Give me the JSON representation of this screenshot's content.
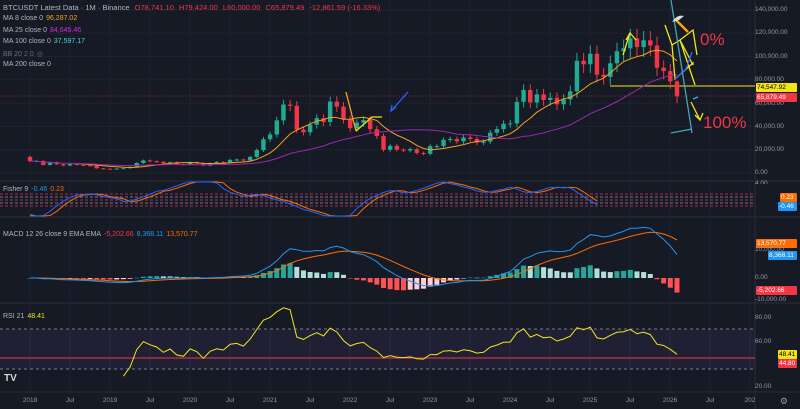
{
  "header": {
    "symbol": "BTCUSDT Latest Data · 1M · Binance",
    "open": "O78,741.10",
    "high": "H79,424.00",
    "low": "L60,000.00",
    "close": "C65,879.49",
    "change": "-12,861.59 (-16.33%)"
  },
  "indicators": {
    "ma8": {
      "label": "MA 8 close 0",
      "value": "96,287.02"
    },
    "ma25": {
      "label": "MA 25 close 0",
      "value": "84,645.46"
    },
    "ma100": {
      "label": "MA 100 close 0",
      "value": "37,597.17"
    },
    "bb": {
      "label": "BB 20 2 0"
    },
    "ma200": {
      "label": "MA 200 close 0"
    },
    "fisher": {
      "label": "Fisher 9",
      "v1": "-0.46",
      "v2": "0.23"
    },
    "macd": {
      "label": "MACD 12 26 close 9 EMA EMA",
      "hist": "-5,202.66",
      "macd": "8,368.11",
      "signal": "13,570.77"
    },
    "rsi": {
      "label": "RSI 21",
      "value": "48.41"
    }
  },
  "annotations": {
    "top": "0%",
    "bottom": "100%"
  },
  "price_axis": [
    "140,000.00",
    "120,000.00",
    "100,000.00",
    "80,000.00",
    "60,000.00",
    "40,000.00",
    "20,000.00",
    "0.00"
  ],
  "price_tags": {
    "level": "74,547.92",
    "last": "65,879.49"
  },
  "fisher_axis": {
    "top": "4.00",
    "tag1": "0.23",
    "tag2": "-0.46"
  },
  "macd_axis": {
    "ticks": [
      "10,000.00",
      "0.00",
      "-10,000.00"
    ],
    "signal": "13,570.77",
    "macd": "8,368.11",
    "hist": "-5,202.66"
  },
  "rsi_axis": {
    "ticks": [
      "80.00",
      "60.00",
      "20.00"
    ],
    "value": "48.41",
    "level": "44.80"
  },
  "time_axis": [
    "2018",
    "Jul",
    "2019",
    "Jul",
    "2020",
    "Jul",
    "2021",
    "Jul",
    "2022",
    "Jul",
    "2023",
    "Jul",
    "2024",
    "Jul",
    "2025",
    "Jul",
    "2026",
    "Jul",
    "202"
  ],
  "colors": {
    "up": "#22ab94",
    "down": "#f23645",
    "ma8": "#f7a21b",
    "ma25": "#9c27b0",
    "bg": "#161a25",
    "fisher1": "#2962ff",
    "fisher2": "#ff6d00",
    "rsi": "#f2e41b"
  },
  "chart_data": {
    "type": "candlestick",
    "title": "BTCUSDT 1M",
    "start": "2018-01",
    "ylim": [
      0,
      140000
    ],
    "closes_k": [
      10.2,
      10.3,
      6.9,
      9.2,
      7.5,
      6.4,
      7.7,
      7.0,
      6.6,
      6.3,
      4.0,
      3.7,
      3.4,
      3.8,
      4.1,
      5.3,
      8.6,
      10.8,
      10.1,
      9.6,
      8.3,
      9.2,
      7.6,
      7.2,
      9.3,
      8.5,
      6.4,
      8.6,
      9.5,
      9.1,
      11.3,
      11.6,
      10.8,
      13.8,
      19.7,
      29.0,
      33.1,
      45.2,
      58.8,
      57.7,
      37.3,
      35.0,
      41.5,
      47.1,
      43.8,
      61.3,
      57.0,
      46.2,
      38.5,
      43.2,
      45.5,
      37.6,
      31.8,
      19.9,
      23.3,
      20.0,
      19.4,
      20.5,
      17.2,
      16.5,
      23.1,
      23.1,
      28.5,
      29.2,
      27.2,
      30.5,
      29.2,
      26.0,
      27.0,
      34.6,
      37.7,
      42.3,
      42.6,
      61.1,
      71.3,
      60.6,
      67.5,
      62.7,
      64.6,
      59.0,
      63.3,
      70.2,
      96.4,
      93.4,
      102.4,
      84.4,
      82.5,
      94.2,
      104.6,
      107.1,
      115.7,
      108.2,
      114.0,
      109.5,
      90.4,
      87.5,
      78.7,
      65.9
    ],
    "last_candle": {
      "open": 78741.1,
      "high": 79424.0,
      "low": 60000.0,
      "close": 65879.49
    },
    "horizontal_level": 74547.92
  }
}
